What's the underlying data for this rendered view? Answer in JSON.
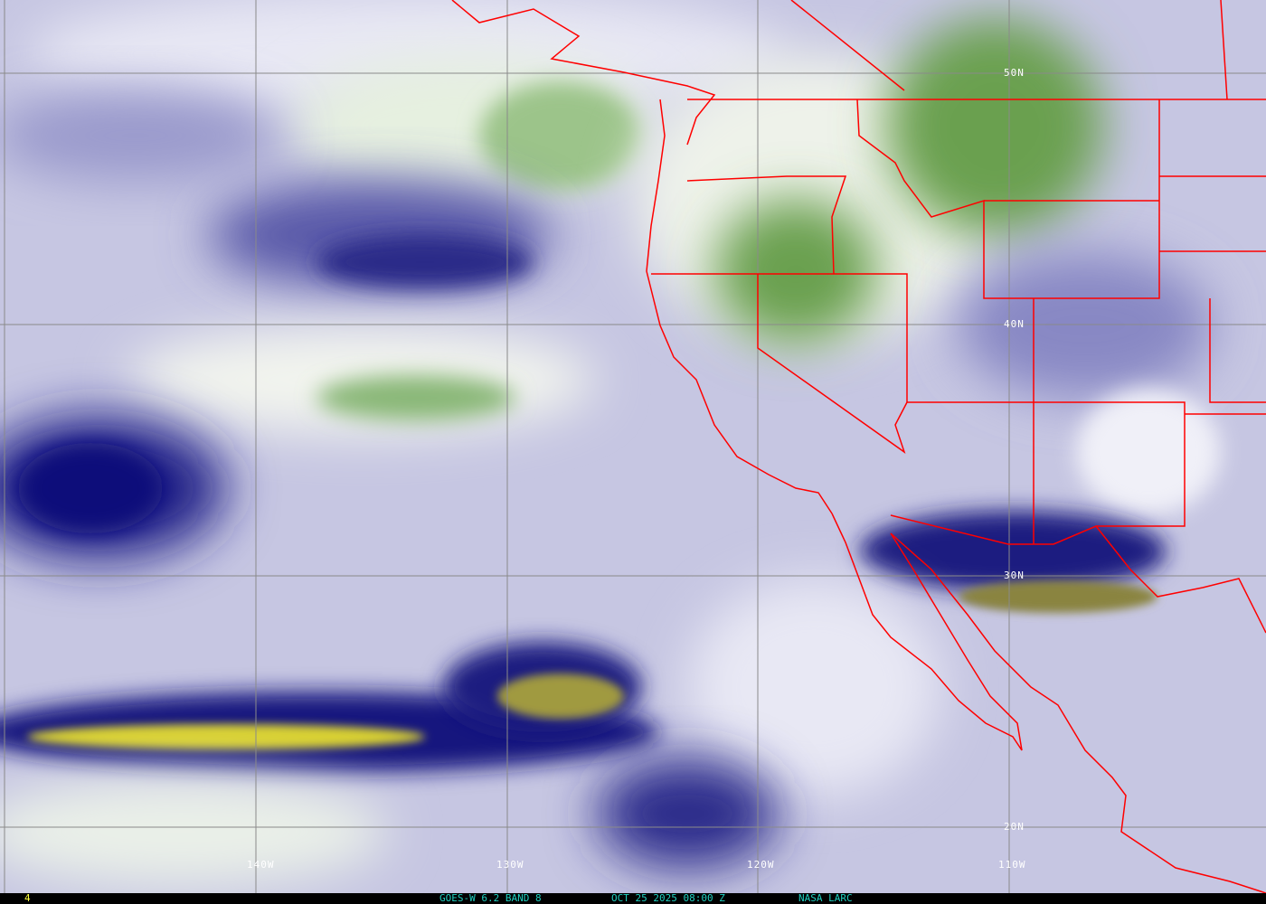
{
  "imagery": {
    "satellite": "GOES-W",
    "channel": "6.2 BAND 8",
    "colors": {
      "background": "#c6c6e2",
      "dry": "#1a1a80",
      "very_dry": "#c8c020",
      "moist": "#ffffff",
      "high_cloud": "#5a9a3a",
      "borders": "#ff0000",
      "grid": "#808080",
      "caption": "#20d0c0",
      "frame_number": "#ffff40"
    }
  },
  "grid_labels": {
    "lat": [
      "50N",
      "40N",
      "30N",
      "20N"
    ],
    "lon": [
      "140W",
      "130W",
      "120W",
      "110W"
    ]
  },
  "caption": {
    "frame": "4",
    "product": "GOES-W 6.2 BAND 8",
    "datetime": "OCT 25 2025 08:00 Z",
    "source": "NASA LARC"
  }
}
